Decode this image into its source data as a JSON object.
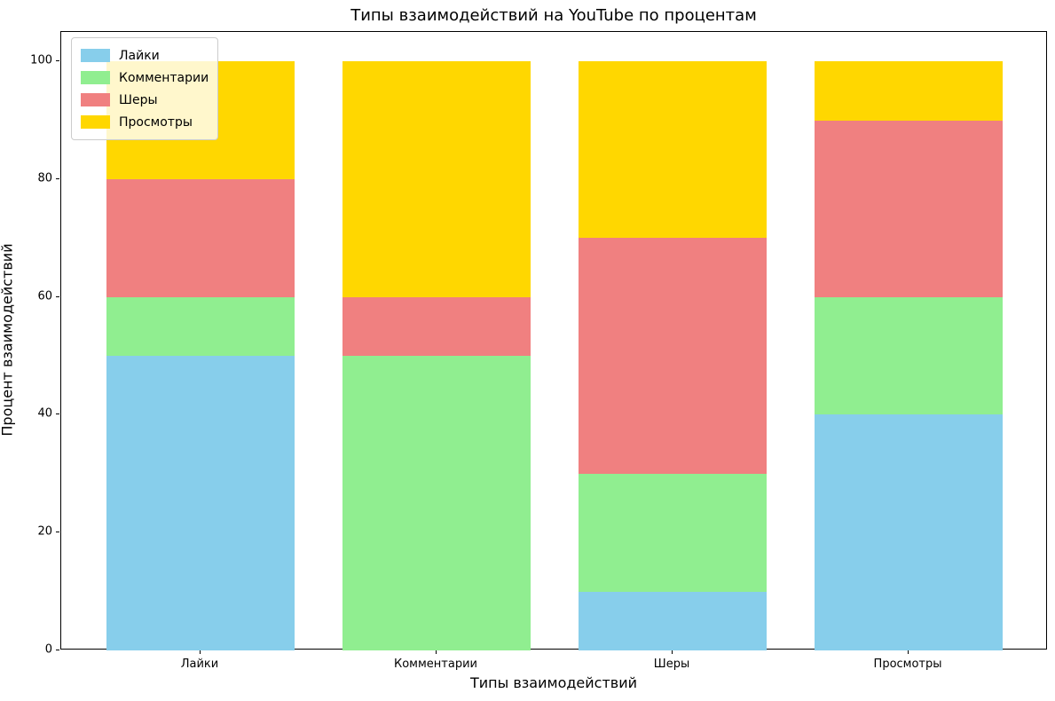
{
  "chart_data": {
    "type": "bar",
    "stacked": true,
    "title": "Типы взаимодействий на YouTube по процентам",
    "xlabel": "Типы взаимодействий",
    "ylabel": "Процент взаимодействий",
    "categories": [
      "Лайки",
      "Комментарии",
      "Шеры",
      "Просмотры"
    ],
    "series": [
      {
        "name": "Лайки",
        "color": "#87CEEB",
        "values": [
          50,
          0,
          10,
          40
        ]
      },
      {
        "name": "Комментарии",
        "color": "#90EE90",
        "values": [
          10,
          50,
          20,
          20
        ]
      },
      {
        "name": "Шеры",
        "color": "#F08080",
        "values": [
          20,
          10,
          40,
          30
        ]
      },
      {
        "name": "Просмотры",
        "color": "#FFD700",
        "values": [
          20,
          40,
          30,
          10
        ]
      }
    ],
    "ylim": [
      0,
      105
    ],
    "yticks": [
      0,
      20,
      40,
      60,
      80,
      100
    ],
    "grid": false,
    "legend": {
      "position": "upper left",
      "labels": [
        "Лайки",
        "Комментарии",
        "Шеры",
        "Просмотры"
      ]
    }
  }
}
